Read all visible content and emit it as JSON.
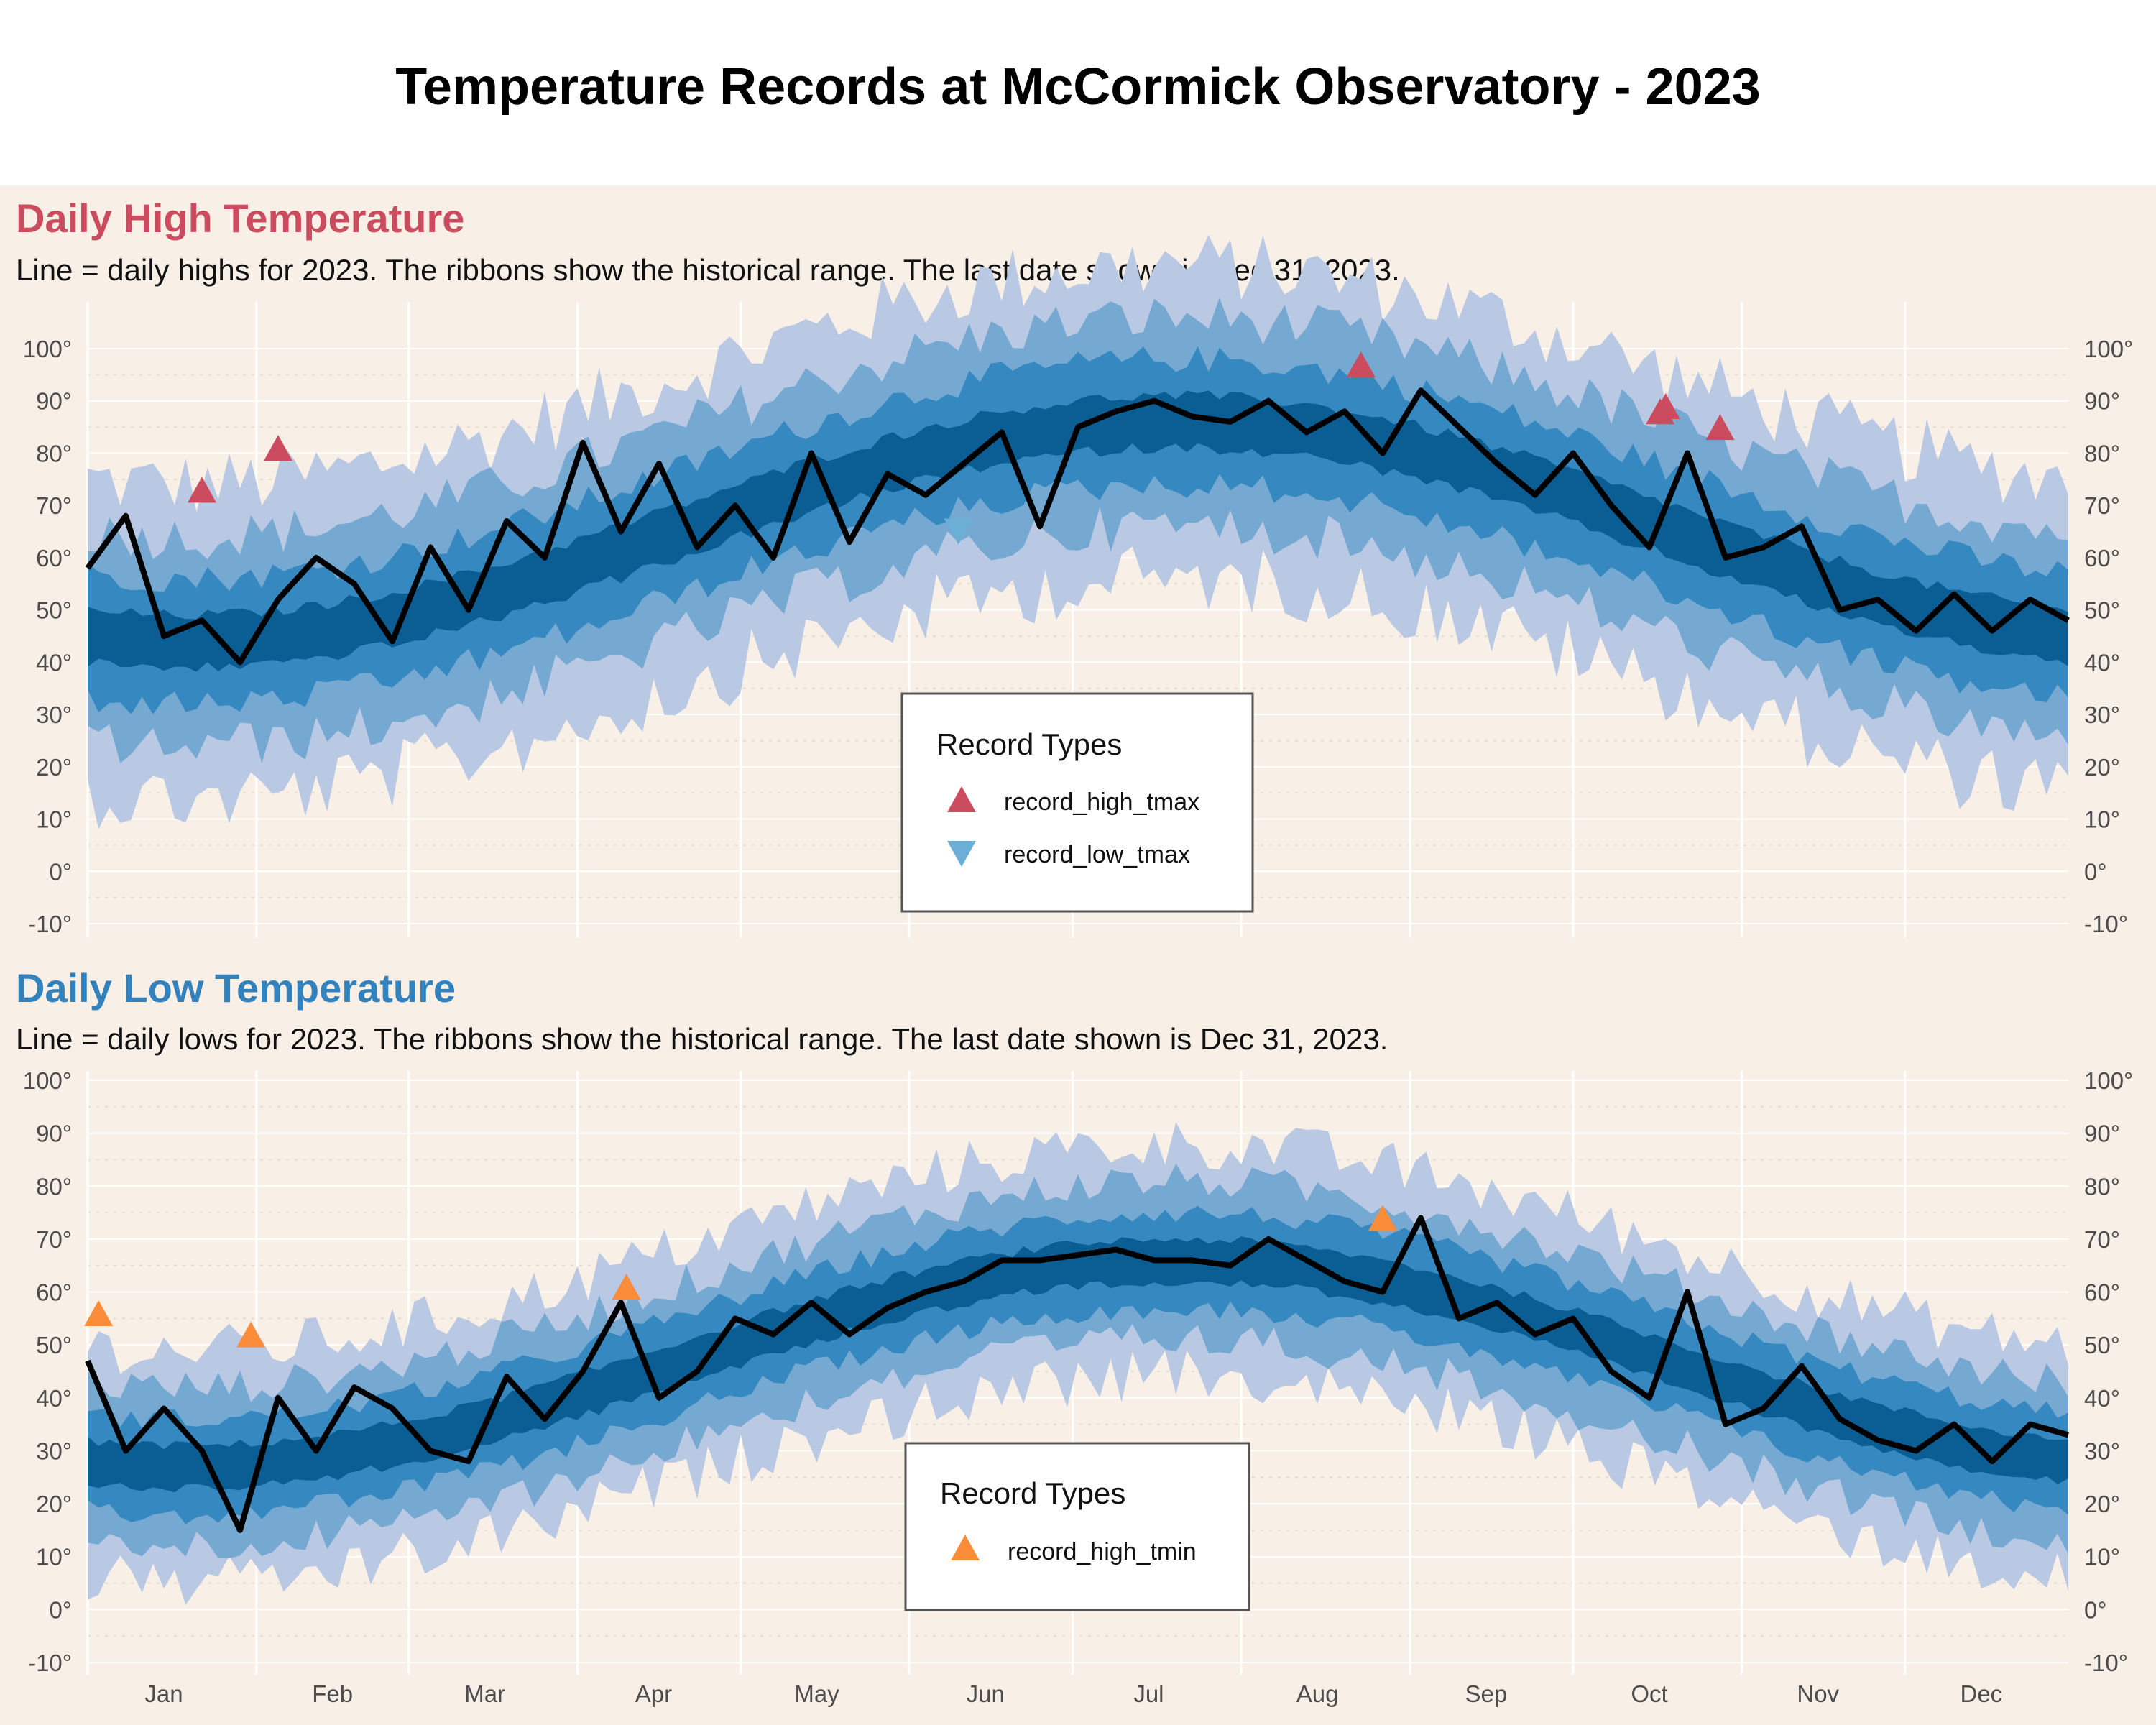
{
  "title": "Temperature Records at McCormick Observatory - 2023",
  "colors": {
    "panel_bg": "#f8efe6",
    "ribbon_outer": "#b9c8e3",
    "ribbon_mid": "#76a9d2",
    "ribbon_inner": "#3689c0",
    "ribbon_core": "#0b5e93",
    "line": "#000000",
    "record_high_tmax": "#cc4c5f",
    "record_low_tmax": "#6baed6",
    "record_high_tmin": "#fb8c3a",
    "high_title": "#cc4c5f",
    "low_title": "#3182bd"
  },
  "chart_data": [
    {
      "type": "line",
      "panel_title": "Daily High Temperature",
      "subtitle": "Line = daily highs for 2023. The ribbons show the historical range. The last date shown is Dec 31, 2023.",
      "x_domain": [
        "2023-01-01",
        "2023-12-31"
      ],
      "ylim": [
        -10,
        105
      ],
      "y_ticks": [
        "-10°",
        "0°",
        "10°",
        "20°",
        "30°",
        "40°",
        "50°",
        "60°",
        "70°",
        "80°",
        "90°",
        "100°"
      ],
      "x_ticks": [
        "Jan",
        "Feb",
        "Mar",
        "Apr",
        "May",
        "Jun",
        "Jul",
        "Aug",
        "Sep",
        "Oct",
        "Nov",
        "Dec"
      ],
      "grid": true,
      "series_2023": {
        "date": [
          "2023-01-01",
          "2023-01-08",
          "2023-01-15",
          "2023-01-22",
          "2023-01-29",
          "2023-02-05",
          "2023-02-12",
          "2023-02-19",
          "2023-02-26",
          "2023-03-05",
          "2023-03-12",
          "2023-03-19",
          "2023-03-26",
          "2023-04-02",
          "2023-04-09",
          "2023-04-16",
          "2023-04-23",
          "2023-04-30",
          "2023-05-07",
          "2023-05-14",
          "2023-05-21",
          "2023-05-28",
          "2023-06-04",
          "2023-06-11",
          "2023-06-18",
          "2023-06-25",
          "2023-07-02",
          "2023-07-09",
          "2023-07-16",
          "2023-07-23",
          "2023-07-30",
          "2023-08-06",
          "2023-08-13",
          "2023-08-20",
          "2023-08-27",
          "2023-09-03",
          "2023-09-10",
          "2023-09-17",
          "2023-09-24",
          "2023-10-01",
          "2023-10-08",
          "2023-10-15",
          "2023-10-22",
          "2023-10-29",
          "2023-11-05",
          "2023-11-12",
          "2023-11-19",
          "2023-11-26",
          "2023-12-03",
          "2023-12-10",
          "2023-12-17",
          "2023-12-24",
          "2023-12-31"
        ],
        "tmax": [
          58,
          68,
          45,
          48,
          40,
          52,
          60,
          55,
          44,
          62,
          50,
          67,
          60,
          82,
          65,
          78,
          62,
          70,
          60,
          80,
          63,
          76,
          72,
          78,
          84,
          66,
          85,
          88,
          90,
          87,
          86,
          90,
          84,
          88,
          80,
          92,
          85,
          78,
          72,
          80,
          70,
          62,
          80,
          60,
          62,
          66,
          50,
          52,
          46,
          53,
          46,
          52,
          48
        ]
      },
      "legend": {
        "title": "Record Types",
        "items": [
          {
            "label": "record_high_tmax",
            "marker": "triangle-up",
            "color": "#cc4c5f"
          },
          {
            "label": "record_low_tmax",
            "marker": "triangle-down",
            "color": "#6baed6"
          }
        ]
      },
      "records": [
        {
          "date": "2023-01-22",
          "value": 73,
          "type": "record_high_tmax"
        },
        {
          "date": "2023-02-05",
          "value": 81,
          "type": "record_high_tmax"
        },
        {
          "date": "2023-06-10",
          "value": 65,
          "type": "record_low_tmax"
        },
        {
          "date": "2023-08-23",
          "value": 97,
          "type": "record_high_tmax"
        },
        {
          "date": "2023-10-17",
          "value": 88,
          "type": "record_high_tmax"
        },
        {
          "date": "2023-10-18",
          "value": 89,
          "type": "record_high_tmax"
        },
        {
          "date": "2023-10-28",
          "value": 85,
          "type": "record_high_tmax"
        }
      ]
    },
    {
      "type": "line",
      "panel_title": "Daily Low Temperature",
      "subtitle": "Line = daily lows for 2023. The ribbons show the historical range. The last date shown is Dec 31, 2023.",
      "x_domain": [
        "2023-01-01",
        "2023-12-31"
      ],
      "ylim": [
        -10,
        105
      ],
      "y_ticks": [
        "-10°",
        "0°",
        "10°",
        "20°",
        "30°",
        "40°",
        "50°",
        "60°",
        "70°",
        "80°",
        "90°",
        "100°"
      ],
      "x_ticks": [
        "Jan",
        "Feb",
        "Mar",
        "Apr",
        "May",
        "Jun",
        "Jul",
        "Aug",
        "Sep",
        "Oct",
        "Nov",
        "Dec"
      ],
      "grid": true,
      "series_2023": {
        "date": [
          "2023-01-01",
          "2023-01-08",
          "2023-01-15",
          "2023-01-22",
          "2023-01-29",
          "2023-02-05",
          "2023-02-12",
          "2023-02-19",
          "2023-02-26",
          "2023-03-05",
          "2023-03-12",
          "2023-03-19",
          "2023-03-26",
          "2023-04-02",
          "2023-04-09",
          "2023-04-16",
          "2023-04-23",
          "2023-04-30",
          "2023-05-07",
          "2023-05-14",
          "2023-05-21",
          "2023-05-28",
          "2023-06-04",
          "2023-06-11",
          "2023-06-18",
          "2023-06-25",
          "2023-07-02",
          "2023-07-09",
          "2023-07-16",
          "2023-07-23",
          "2023-07-30",
          "2023-08-06",
          "2023-08-13",
          "2023-08-20",
          "2023-08-27",
          "2023-09-03",
          "2023-09-10",
          "2023-09-17",
          "2023-09-24",
          "2023-10-01",
          "2023-10-08",
          "2023-10-15",
          "2023-10-22",
          "2023-10-29",
          "2023-11-05",
          "2023-11-12",
          "2023-11-19",
          "2023-11-26",
          "2023-12-03",
          "2023-12-10",
          "2023-12-17",
          "2023-12-24",
          "2023-12-31"
        ],
        "tmin": [
          47,
          30,
          38,
          30,
          15,
          40,
          30,
          42,
          38,
          30,
          28,
          44,
          36,
          45,
          58,
          40,
          45,
          55,
          52,
          58,
          52,
          57,
          60,
          62,
          66,
          66,
          67,
          68,
          66,
          66,
          65,
          70,
          66,
          62,
          60,
          74,
          55,
          58,
          52,
          55,
          45,
          40,
          60,
          35,
          38,
          46,
          36,
          32,
          30,
          35,
          28,
          35,
          33
        ]
      },
      "legend": {
        "title": "Record Types",
        "items": [
          {
            "label": "record_high_tmin",
            "marker": "triangle-up",
            "color": "#fb8c3a"
          }
        ]
      },
      "records": [
        {
          "date": "2023-01-03",
          "value": 56,
          "type": "record_high_tmin"
        },
        {
          "date": "2023-01-31",
          "value": 52,
          "type": "record_high_tmin"
        },
        {
          "date": "2023-04-10",
          "value": 61,
          "type": "record_high_tmin"
        },
        {
          "date": "2023-08-27",
          "value": 74,
          "type": "record_high_tmin"
        }
      ]
    }
  ]
}
